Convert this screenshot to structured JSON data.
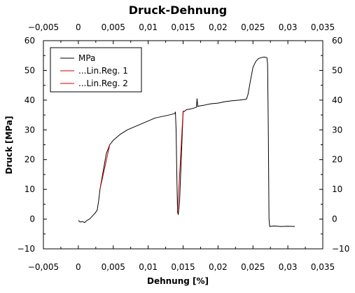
{
  "chart_data": {
    "type": "line",
    "title": "Druck-Dehnung",
    "xlabel": "Dehnung [%]",
    "ylabel": "Druck [MPa]",
    "xlim": [
      -0.005,
      0.035
    ],
    "ylim": [
      -10,
      60
    ],
    "x_ticks": [
      -0.005,
      0,
      0.005,
      0.01,
      0.015,
      0.02,
      0.025,
      0.03,
      0.035
    ],
    "x_tick_labels": [
      "−0,005",
      "0",
      "0,005",
      "0,01",
      "0,015",
      "0,02",
      "0,025",
      "0,03",
      "0,035"
    ],
    "y_ticks": [
      -10,
      0,
      10,
      20,
      30,
      40,
      50,
      60
    ],
    "y_tick_labels": [
      "−10",
      "0",
      "10",
      "20",
      "30",
      "40",
      "50",
      "60"
    ],
    "grid": false,
    "legend_position": "top-left",
    "series": [
      {
        "name": "MPa",
        "color": "#000000",
        "x": [
          0,
          0.0003,
          0.0006,
          0.0009,
          0.0012,
          0.0016,
          0.002,
          0.0024,
          0.0027,
          0.0029,
          0.0031,
          0.0034,
          0.0037,
          0.004,
          0.0045,
          0.005,
          0.006,
          0.007,
          0.008,
          0.009,
          0.01,
          0.011,
          0.012,
          0.013,
          0.0138,
          0.0139,
          0.014,
          0.0141,
          0.0142,
          0.0143,
          0.0145,
          0.0147,
          0.0149,
          0.015,
          0.0152,
          0.0153,
          0.0155,
          0.016,
          0.0165,
          0.0169,
          0.017,
          0.0171,
          0.0172,
          0.018,
          0.019,
          0.02,
          0.021,
          0.022,
          0.023,
          0.024,
          0.0241,
          0.0243,
          0.0246,
          0.025,
          0.0254,
          0.0258,
          0.0262,
          0.0266,
          0.027,
          0.0271,
          0.0272,
          0.0273,
          0.0274,
          0.028,
          0.029,
          0.03,
          0.031
        ],
        "y": [
          -0.5,
          -1,
          -0.8,
          -1.2,
          -0.5,
          0,
          1,
          2,
          3,
          6,
          10,
          14,
          18,
          22,
          25,
          26.5,
          28.5,
          30,
          31,
          32,
          33,
          34,
          34.5,
          35,
          35.5,
          36,
          30,
          15,
          3,
          1.5,
          6,
          18,
          30,
          36,
          36.2,
          36.5,
          36.8,
          37,
          37.3,
          37.6,
          40.5,
          37.8,
          38,
          38.3,
          38.8,
          39,
          39.5,
          39.8,
          40,
          40.3,
          40.5,
          42,
          46,
          51,
          53,
          54,
          54.3,
          54.5,
          54.3,
          52,
          30,
          0,
          -2.5,
          -2.3,
          -2.5,
          -2.4,
          -2.5
        ]
      },
      {
        "name": "...Lin.Reg. 1",
        "color": "#cc0000",
        "x": [
          0.0031,
          0.0045
        ],
        "y": [
          10,
          25
        ]
      },
      {
        "name": "...Lin.Reg. 2",
        "color": "#cc0000",
        "x": [
          0.0142,
          0.015
        ],
        "y": [
          2,
          36.5
        ]
      }
    ]
  }
}
